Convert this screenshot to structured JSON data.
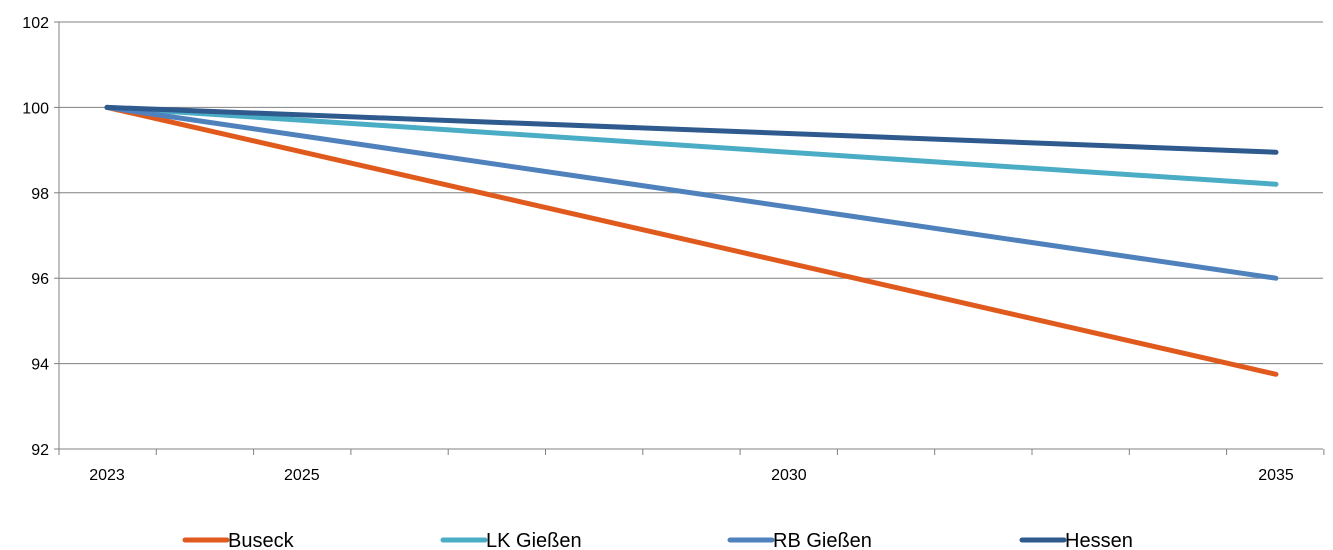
{
  "chart_data": {
    "type": "line",
    "title": "",
    "xlabel": "",
    "ylabel": "",
    "x": [
      2023,
      2035
    ],
    "xlim": [
      2023,
      2035
    ],
    "x_tick_labels": [
      "2023",
      "2025",
      "2030",
      "2035"
    ],
    "x_tick_values": [
      2023,
      2025,
      2030,
      2035
    ],
    "ylim": [
      92,
      102
    ],
    "y_tick_labels": [
      "92",
      "94",
      "96",
      "98",
      "100",
      "102"
    ],
    "y_tick_values": [
      92,
      94,
      96,
      98,
      100,
      102
    ],
    "grid": true,
    "legend_position": "bottom",
    "series": [
      {
        "name": "Buseck",
        "color": "#E05A1E",
        "values": [
          100,
          93.75
        ]
      },
      {
        "name": "LK Gießen",
        "color": "#4BACC6",
        "values": [
          100,
          98.2
        ]
      },
      {
        "name": "RB Gießen",
        "color": "#4F81BD",
        "values": [
          100,
          96.0
        ]
      },
      {
        "name": "Hessen",
        "color": "#2E5A8E",
        "values": [
          100,
          98.95
        ]
      }
    ]
  }
}
